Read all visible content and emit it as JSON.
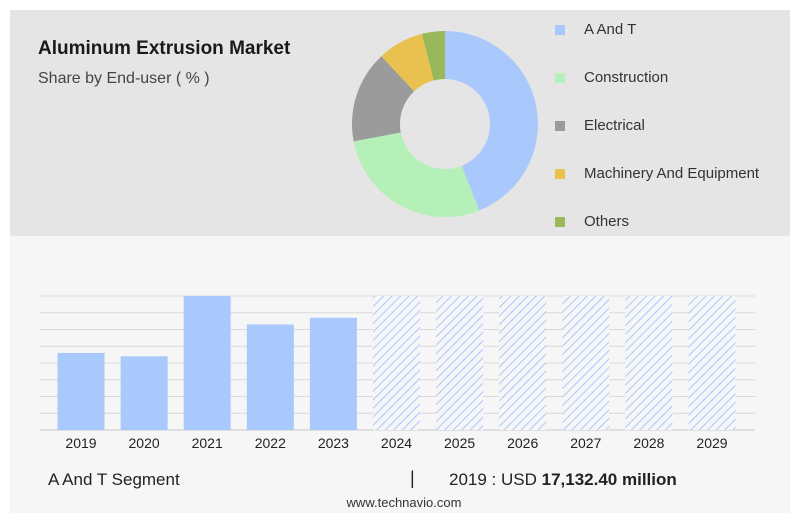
{
  "header": {
    "title": "Aluminum Extrusion Market",
    "subtitle": "Share by End-user ( % )"
  },
  "chart_data": [
    {
      "type": "pie",
      "variant": "donut",
      "title": "Aluminum Extrusion Market",
      "subtitle": "Share by End-user ( % )",
      "legend_position": "right",
      "slices": [
        {
          "label": "A And T",
          "value": 44,
          "color": "#a9c8fc"
        },
        {
          "label": "Construction",
          "value": 28,
          "color": "#b6f0b9"
        },
        {
          "label": "Electrical",
          "value": 16,
          "color": "#9b9b9b"
        },
        {
          "label": "Machinery And Equipment",
          "value": 8,
          "color": "#e8c14f"
        },
        {
          "label": "Others",
          "value": 4,
          "color": "#99b85a"
        }
      ]
    },
    {
      "type": "bar",
      "series_name": "A And T Segment",
      "categories": [
        "2019",
        "2020",
        "2021",
        "2022",
        "2023",
        "2024",
        "2025",
        "2026",
        "2027",
        "2028",
        "2029"
      ],
      "values": [
        46,
        44,
        80,
        63,
        67,
        80,
        80,
        80,
        80,
        80,
        80
      ],
      "forecast": [
        false,
        false,
        false,
        false,
        false,
        true,
        true,
        true,
        true,
        true,
        true
      ],
      "ylim": [
        0,
        80
      ],
      "grid": true,
      "bar_color": "#a9c8fc",
      "forecast_pattern_color": "#a9c8fc"
    }
  ],
  "footer": {
    "segment_label": "A And T Segment",
    "separator": "|",
    "value_prefix": "2019 : USD",
    "value_bold": "17,132.40 million",
    "website": "www.technavio.com"
  }
}
